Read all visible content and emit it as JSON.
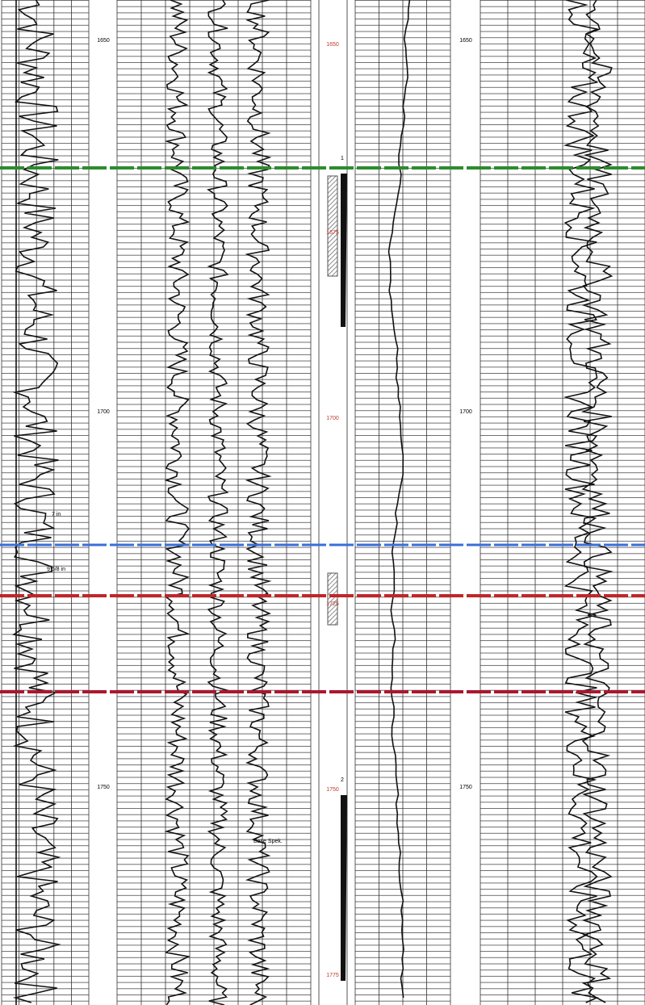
{
  "depth_labels_left": [
    "1650",
    "1700",
    "1750"
  ],
  "depth_labels_right": [
    "1650",
    "1700",
    "1750"
  ],
  "center_depths": [
    "1650",
    "1675",
    "1700",
    "1725",
    "1750",
    "1775"
  ],
  "markers": [
    "1",
    "2"
  ],
  "annotations": [
    "7 in",
    "9 5/8 in",
    "Base Spek."
  ]
}
